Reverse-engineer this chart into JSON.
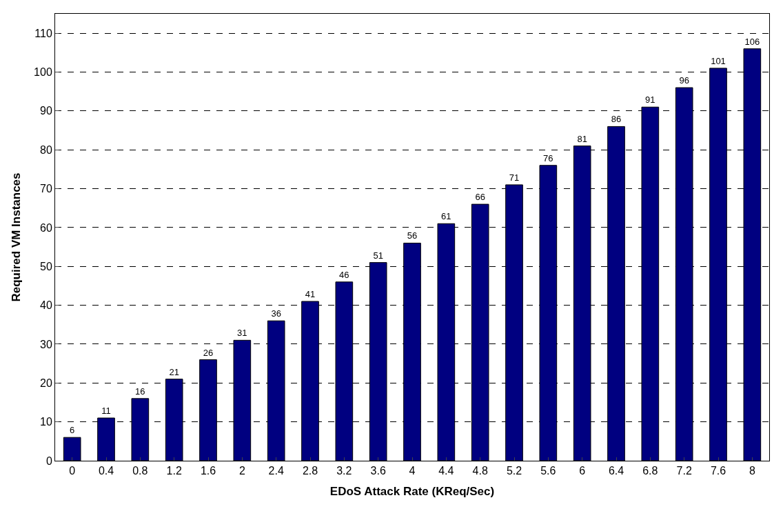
{
  "chart_data": {
    "type": "bar",
    "xlabel": "EDoS Attack Rate (KReq/Sec)",
    "ylabel": "Required VM Instances",
    "categories": [
      "0",
      "0.4",
      "0.8",
      "1.2",
      "1.6",
      "2",
      "2.4",
      "2.8",
      "3.2",
      "3.6",
      "4",
      "4.4",
      "4.8",
      "5.2",
      "5.6",
      "6",
      "6.4",
      "6.8",
      "7.2",
      "7.6",
      "8"
    ],
    "values": [
      6,
      11,
      16,
      21,
      26,
      31,
      36,
      41,
      46,
      51,
      56,
      61,
      66,
      71,
      76,
      81,
      86,
      91,
      96,
      101,
      106
    ],
    "color": "#000080",
    "ylim": [
      0,
      115
    ],
    "yticks": [
      0,
      10,
      20,
      30,
      40,
      50,
      60,
      70,
      80,
      90,
      100,
      110
    ],
    "grid": "y",
    "line_style": "dashed",
    "data_labels": true,
    "legend": false
  }
}
